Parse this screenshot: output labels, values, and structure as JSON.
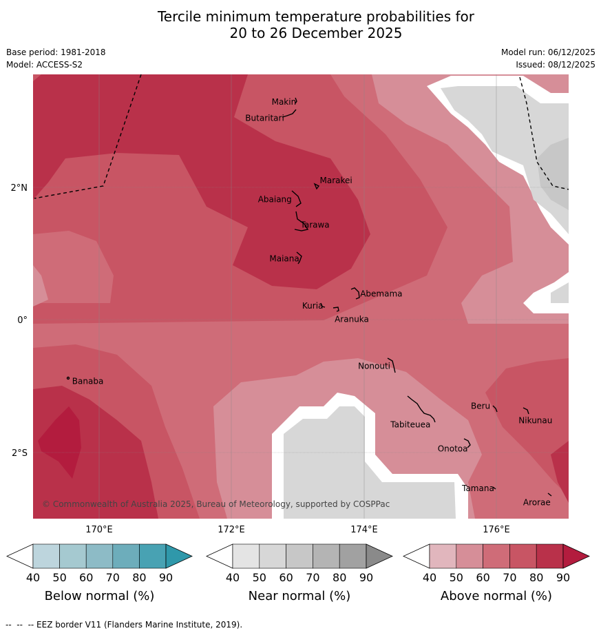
{
  "title_line1": "Tercile minimum temperature probabilities for",
  "title_line2": "20 to 26 December 2025",
  "base_period": "Base period: 1981-2018",
  "model": "Model: ACCESS-S2",
  "model_run": "Model run: 06/12/2025",
  "issued": "Issued: 08/12/2025",
  "map": {
    "lat_labels": [
      "2°N",
      "0°",
      "2°S"
    ],
    "lon_labels": [
      "170°E",
      "172°E",
      "174°E",
      "176°E"
    ],
    "places": [
      {
        "name": "Makin",
        "lon": 172.97,
        "lat": 3.3
      },
      {
        "name": "Butaritari",
        "lon": 172.79,
        "lat": 3.07
      },
      {
        "name": "Marakei",
        "lon": 173.27,
        "lat": 2.0
      },
      {
        "name": "Abaiang",
        "lon": 172.95,
        "lat": 1.84
      },
      {
        "name": "Tarawa",
        "lon": 173.0,
        "lat": 1.42
      },
      {
        "name": "Maiana",
        "lon": 173.03,
        "lat": 0.92
      },
      {
        "name": "Abemama",
        "lon": 173.85,
        "lat": 0.4
      },
      {
        "name": "Kuria",
        "lon": 173.42,
        "lat": 0.23
      },
      {
        "name": "Aranuka",
        "lon": 173.63,
        "lat": 0.16
      },
      {
        "name": "Banaba",
        "lon": 169.53,
        "lat": -0.87
      },
      {
        "name": "Nonouti",
        "lon": 174.4,
        "lat": -0.67
      },
      {
        "name": "Tabiteuea",
        "lon": 174.87,
        "lat": -1.35
      },
      {
        "name": "Beru",
        "lon": 176.0,
        "lat": -1.33
      },
      {
        "name": "Nikunau",
        "lon": 176.45,
        "lat": -1.35
      },
      {
        "name": "Onotoa",
        "lon": 175.55,
        "lat": -1.85
      },
      {
        "name": "Tamana",
        "lon": 175.98,
        "lat": -2.5
      },
      {
        "name": "Arorae",
        "lon": 176.82,
        "lat": -2.65
      }
    ],
    "copyright": "© Commonwealth of Australia 2025, Bureau of Meteorology, supported by COSPPac"
  },
  "colorbars": [
    {
      "title": "Below normal (%)",
      "ticks": [
        "40",
        "50",
        "60",
        "70",
        "80",
        "90"
      ],
      "colors": [
        "#bdd5dd",
        "#a5c9d0",
        "#8dbbc6",
        "#6dadbb",
        "#48a2b3",
        "#2f98aa"
      ]
    },
    {
      "title": "Near normal (%)",
      "ticks": [
        "40",
        "50",
        "60",
        "70",
        "80",
        "90"
      ],
      "colors": [
        "#e4e4e4",
        "#d7d7d7",
        "#c7c7c7",
        "#b4b4b4",
        "#a1a1a1",
        "#8a8a8a"
      ]
    },
    {
      "title": "Above normal (%)",
      "ticks": [
        "40",
        "50",
        "60",
        "70",
        "80",
        "90"
      ],
      "colors": [
        "#e1b6bd",
        "#d68e98",
        "#cf6c78",
        "#c85564",
        "#b9314a",
        "#b31c3e"
      ]
    }
  ],
  "footer": "--  --  -- EEZ border V11 (Flanders Marine Institute, 2019)."
}
